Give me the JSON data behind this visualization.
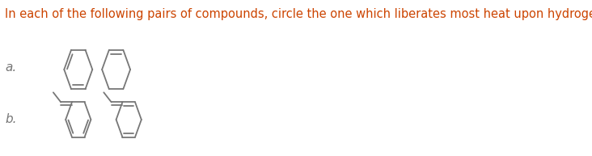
{
  "title_text": "In each of the following pairs of compounds, circle the one which liberates most heat upon hydrogenation?  Why?",
  "title_color": "#cc4400",
  "title_fontsize": 10.5,
  "label_a": "a.",
  "label_b": "b.",
  "label_fontsize": 11,
  "label_color": "#777777",
  "bg_color": "#ffffff",
  "line_color": "#777777",
  "line_width": 1.3
}
